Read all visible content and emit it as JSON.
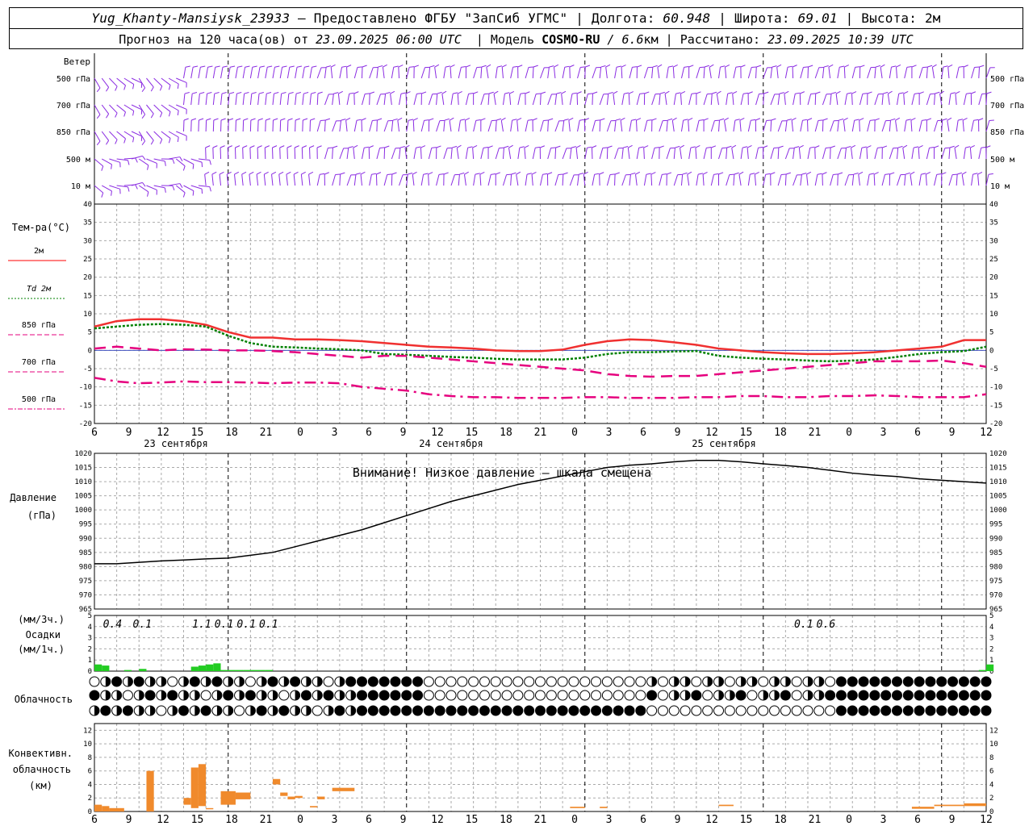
{
  "header": {
    "station": "Yug_Khanty-Mansiysk_23933",
    "provider": "— Предоставлено ФГБУ \"ЗапСиб УГМС\"",
    "lon_label": "Долгота:",
    "lon_value": "60.948",
    "lat_label": "Широта:",
    "lat_value": "69.01",
    "alt_label": "Высота:",
    "alt_value": "2м",
    "forecast_prefix": "Прогноз на 120 часа(ов) от",
    "forecast_from": "23.09.2025 06:00 UTC",
    "model_prefix": "Модель",
    "model_name": "COSMO-RU",
    "model_res": "/ 6.6",
    "model_unit": "км",
    "calc_prefix": "Рассчитано:",
    "calc_time": "23.09.2025 10:39 UTC"
  },
  "x_axis": {
    "hour_ticks": [
      "6",
      "9",
      "12",
      "15",
      "18",
      "21",
      "0",
      "3",
      "6",
      "9",
      "12",
      "15",
      "18",
      "21",
      "0",
      "3",
      "6",
      "9",
      "12",
      "15",
      "18",
      "21",
      "0",
      "3",
      "6",
      "9",
      "12"
    ],
    "day_labels": [
      "23 сентября",
      "24 сентября",
      "25 сентября"
    ]
  },
  "wind": {
    "title": "Ветер",
    "levels": [
      "500 гПа",
      "700 гПа",
      "850 гПа",
      "500 м",
      "10  м"
    ],
    "levels_right": [
      "500 гПа",
      "700 гПа",
      "850 гПа",
      "500 м",
      "10  м"
    ],
    "color": "#8a2be2"
  },
  "temperature": {
    "title": "Тем-ра(°C)",
    "legend": [
      {
        "label": "2м",
        "color": "#f00",
        "style": "solid"
      },
      {
        "label": "Td  2м",
        "color": "#008000",
        "style": "dotted"
      },
      {
        "label": "850 гПа",
        "color": "#e6007e",
        "style": "dash"
      },
      {
        "label": "700 гПа",
        "color": "#e6007e",
        "style": "dash"
      },
      {
        "label": "500 гПа",
        "color": "#e6007e",
        "style": "dashdot"
      }
    ],
    "ticks": [
      "40",
      "35",
      "30",
      "25",
      "20",
      "15",
      "10",
      "5",
      "0",
      "-5",
      "-10",
      "-15",
      "-20"
    ],
    "ylim": [
      -20,
      40
    ]
  },
  "pressure": {
    "title1": "Давление",
    "title2": "(гПа)",
    "warning": "Внимание! Низкое давление – шкала смещена",
    "ticks": [
      "1020",
      "1015",
      "1010",
      "1005",
      "1000",
      "995",
      "990",
      "985",
      "980",
      "975",
      "970",
      "965"
    ],
    "ylim": [
      965,
      1020
    ]
  },
  "precip": {
    "title1": "(мм/3ч.)",
    "title2": "Осадки",
    "title3": "(мм/1ч.)",
    "ticks": [
      "5",
      "4",
      "3",
      "2",
      "1",
      "0"
    ],
    "labels": [
      {
        "text": "0.4",
        "hour": 2
      },
      {
        "text": "0.1",
        "hour": 6
      },
      {
        "text": "1.1",
        "hour": 14
      },
      {
        "text": "0.1",
        "hour": 17
      },
      {
        "text": "0.1",
        "hour": 20
      },
      {
        "text": "0.1",
        "hour": 23
      },
      {
        "text": "0.1",
        "hour": 95
      },
      {
        "text": "0.6",
        "hour": 98
      }
    ]
  },
  "cloud": {
    "title": "Облачность"
  },
  "convective": {
    "title1": "Конвективн.",
    "title2": "облачность",
    "title3": "(км)",
    "ticks": [
      "12",
      "10",
      "8",
      "6",
      "4",
      "2",
      "0"
    ],
    "ylim": [
      0,
      13
    ]
  },
  "chart_data": [
    {
      "type": "line",
      "title": "Тем-ра(°C)",
      "x_hours_from_start": [
        0,
        3,
        6,
        9,
        12,
        15,
        18,
        21,
        24,
        27,
        30,
        33,
        36,
        39,
        42,
        45,
        48,
        51,
        54,
        57,
        60,
        63,
        66,
        69,
        72,
        75,
        78,
        81,
        84,
        87,
        90,
        93,
        96,
        99,
        102,
        105,
        108,
        111,
        114,
        117,
        120
      ],
      "series": [
        {
          "name": "2м",
          "values": [
            6.5,
            8,
            8.5,
            8.5,
            8,
            7,
            5,
            3.5,
            3.5,
            3,
            3,
            2.8,
            2.5,
            2,
            1.5,
            1,
            0.8,
            0.5,
            0,
            -0.2,
            -0.2,
            0.2,
            1.5,
            2.5,
            3,
            2.8,
            2.2,
            1.5,
            0.5,
            0,
            -0.5,
            -0.8,
            -1,
            -1,
            -0.8,
            -0.5,
            0,
            0.5,
            1,
            2.8,
            2.8
          ]
        },
        {
          "name": "Td  2м",
          "values": [
            6,
            6.5,
            7,
            7.2,
            7,
            6.5,
            4,
            2,
            1,
            0.8,
            0.5,
            0.3,
            0,
            -1,
            -1.2,
            -1.5,
            -1.8,
            -2,
            -2.3,
            -2.5,
            -2.5,
            -2.5,
            -2,
            -1,
            -0.5,
            -0.5,
            -0.3,
            -0.2,
            -1.5,
            -2,
            -2.3,
            -2.5,
            -2.8,
            -3,
            -2.8,
            -2.5,
            -1.8,
            -1,
            -0.5,
            -0.2,
            1
          ]
        },
        {
          "name": "850 гПа",
          "values": [
            0.5,
            1,
            0.5,
            0,
            0.3,
            0.2,
            0,
            0,
            -0.2,
            -0.5,
            -1,
            -1.5,
            -2,
            -1.5,
            -1.5,
            -2,
            -2.5,
            -3,
            -3.5,
            -4,
            -4.5,
            -5,
            -5.5,
            -6.5,
            -7,
            -7.2,
            -7,
            -7,
            -6.5,
            -6,
            -5.5,
            -5,
            -4.5,
            -4,
            -3.5,
            -3,
            -3,
            -3,
            -2.8,
            -3.5,
            -4.5
          ]
        },
        {
          "name": "700 гПа",
          "values": [
            null,
            null,
            null,
            null,
            null,
            null,
            null,
            null,
            null,
            null,
            null,
            null,
            null,
            null,
            null,
            null,
            null,
            null,
            null,
            null,
            null,
            null,
            null,
            null,
            null,
            null,
            null,
            null,
            null,
            null,
            null,
            null,
            null,
            null,
            null,
            null,
            null,
            null,
            null,
            null,
            null
          ]
        },
        {
          "name": "500 гПа",
          "values": [
            -7.5,
            -8.5,
            -9,
            -8.8,
            -8.5,
            -8.7,
            -8.7,
            -8.8,
            -9,
            -8.8,
            -8.8,
            -9,
            -10,
            -10.5,
            -11,
            -12,
            -12.5,
            -12.8,
            -12.8,
            -13,
            -13,
            -13,
            -12.8,
            -12.8,
            -13,
            -13,
            -13,
            -12.8,
            -12.8,
            -12.5,
            -12.5,
            -12.8,
            -12.8,
            -12.5,
            -12.5,
            -12.3,
            -12.5,
            -12.8,
            -12.8,
            -12.8,
            -12
          ]
        }
      ],
      "ylim": [
        -20,
        40
      ]
    },
    {
      "type": "line",
      "title": "Давление",
      "x_hours_from_start": [
        0,
        3,
        6,
        9,
        12,
        15,
        18,
        21,
        24,
        27,
        30,
        33,
        36,
        39,
        42,
        45,
        48,
        51,
        54,
        57,
        60,
        63,
        66,
        69,
        72,
        75,
        78,
        81,
        84,
        87,
        90,
        93,
        96,
        99,
        102,
        105,
        108,
        111,
        114,
        117,
        120
      ],
      "series": [
        {
          "name": "Давление",
          "values": [
            981,
            981,
            981.5,
            982,
            982.3,
            982.7,
            983,
            984,
            985,
            987,
            989,
            991,
            993,
            995.5,
            998,
            1000.5,
            1003,
            1005,
            1007,
            1009,
            1010.5,
            1012,
            1013.5,
            1015,
            1015.8,
            1016.3,
            1017,
            1017.5,
            1017.5,
            1017,
            1016.3,
            1015.7,
            1015,
            1014,
            1013,
            1012.3,
            1011.8,
            1011,
            1010.5,
            1010,
            1009.5
          ]
        }
      ],
      "ylim": [
        965,
        1020
      ]
    },
    {
      "type": "bar",
      "title": "Осадки",
      "bars_mm_per_hour": [
        {
          "hour": 0,
          "value": 0.6
        },
        {
          "hour": 1,
          "value": 0.5
        },
        {
          "hour": 4,
          "value": 0.1
        },
        {
          "hour": 6,
          "value": 0.2
        },
        {
          "hour": 13,
          "value": 0.4
        },
        {
          "hour": 14,
          "value": 0.5
        },
        {
          "hour": 15,
          "value": 0.6
        },
        {
          "hour": 16,
          "value": 0.7
        },
        {
          "hour": 17,
          "value": 0.1
        },
        {
          "hour": 18,
          "value": 0.1
        },
        {
          "hour": 19,
          "value": 0.1
        },
        {
          "hour": 20,
          "value": 0.1
        },
        {
          "hour": 21,
          "value": 0.1
        },
        {
          "hour": 22,
          "value": 0.1
        },
        {
          "hour": 23,
          "value": 0.1
        },
        {
          "hour": 119,
          "value": 0.1
        },
        {
          "hour": 120,
          "value": 0.6
        }
      ],
      "ylim": [
        0,
        5
      ]
    },
    {
      "type": "bar",
      "title": "Конвективн. облачность",
      "bars_km": [
        {
          "from": 0,
          "to": 1,
          "bottom": 0,
          "top": 1
        },
        {
          "from": 1,
          "to": 2,
          "bottom": 0,
          "top": 0.8
        },
        {
          "from": 2,
          "to": 4,
          "bottom": 0,
          "top": 0.5
        },
        {
          "from": 7,
          "to": 8,
          "bottom": 0,
          "top": 6
        },
        {
          "from": 12,
          "to": 13,
          "bottom": 1,
          "top": 2
        },
        {
          "from": 13,
          "to": 14,
          "bottom": 0.5,
          "top": 6.5
        },
        {
          "from": 14,
          "to": 15,
          "bottom": 0.8,
          "top": 7
        },
        {
          "from": 15,
          "to": 16,
          "bottom": 0.5,
          "top": 0.5
        },
        {
          "from": 17,
          "to": 19,
          "bottom": 1,
          "top": 3
        },
        {
          "from": 19,
          "to": 21,
          "bottom": 1.8,
          "top": 2.8
        },
        {
          "from": 24,
          "to": 25,
          "bottom": 4,
          "top": 4.8
        },
        {
          "from": 25,
          "to": 26,
          "bottom": 2.3,
          "top": 2.8
        },
        {
          "from": 26,
          "to": 27,
          "bottom": 1.8,
          "top": 2.2
        },
        {
          "from": 27,
          "to": 28,
          "bottom": 2,
          "top": 2.3
        },
        {
          "from": 29,
          "to": 30,
          "bottom": 0.6,
          "top": 0.8
        },
        {
          "from": 30,
          "to": 31,
          "bottom": 1.8,
          "top": 2.2
        },
        {
          "from": 32,
          "to": 35,
          "bottom": 3,
          "top": 3.5
        },
        {
          "from": 64,
          "to": 66,
          "bottom": 0.5,
          "top": 0.7
        },
        {
          "from": 68,
          "to": 69,
          "bottom": 0.5,
          "top": 0.7
        },
        {
          "from": 84,
          "to": 86,
          "bottom": 0.8,
          "top": 1
        },
        {
          "from": 110,
          "to": 113,
          "bottom": 0.4,
          "top": 0.7
        },
        {
          "from": 113,
          "to": 117,
          "bottom": 0.8,
          "top": 1
        },
        {
          "from": 117,
          "to": 120,
          "bottom": 0.8,
          "top": 1.2
        }
      ],
      "ylim": [
        0,
        13
      ]
    }
  ]
}
